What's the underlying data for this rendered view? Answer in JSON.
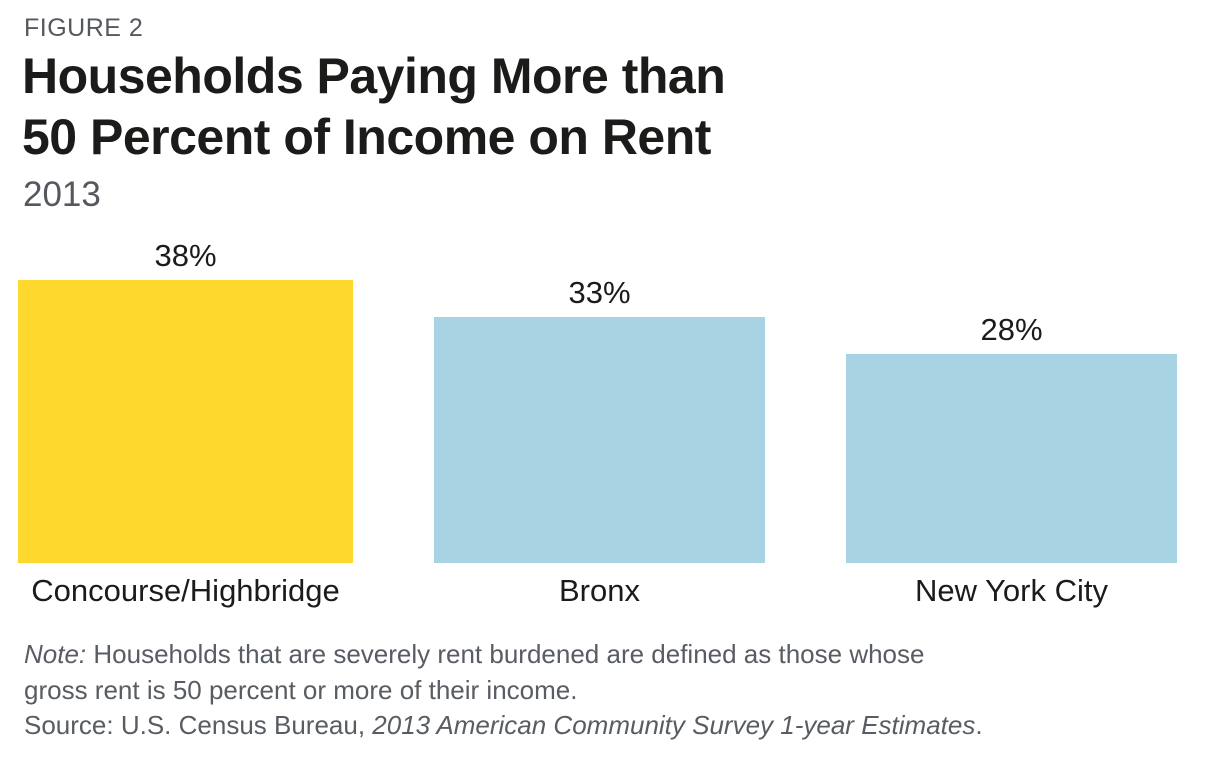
{
  "header": {
    "figure_label": "FIGURE 2",
    "title_line1": "Households Paying More than",
    "title_line2": "50 Percent of Income on Rent",
    "subtitle": "2013"
  },
  "chart_data": {
    "type": "bar",
    "title": "Households Paying More than 50 Percent of Income on Rent",
    "year": "2013",
    "categories": [
      "Concourse/Highbridge",
      "Bronx",
      "New York City"
    ],
    "values": [
      38,
      33,
      28
    ],
    "value_labels": [
      "38%",
      "33%",
      "28%"
    ],
    "unit": "percent of households",
    "ylim": [
      0,
      40
    ],
    "grid": false,
    "legend": "none",
    "axes_shown": false,
    "bar_colors": [
      "#FFD82D",
      "#A8D3E2",
      "#A8D3E2"
    ],
    "highlight_category": "Concourse/Highbridge"
  },
  "colors": {
    "highlight_yellow": "#FFD82D",
    "base_blue": "#A8D3E2",
    "heading_text": "#1B1B19",
    "muted_text": "#55585E",
    "note_text": "#585C63"
  },
  "notes": {
    "note_label": "Note:",
    "note_line1_rest": "Households that are severely rent burdened are defined as those whose",
    "note_line2": "gross rent is 50 percent or more of their income.",
    "source_prefix": "Source: U.S. Census Bureau,",
    "source_italic": "2013 American Community Survey 1-year Estimates",
    "source_suffix": "."
  }
}
